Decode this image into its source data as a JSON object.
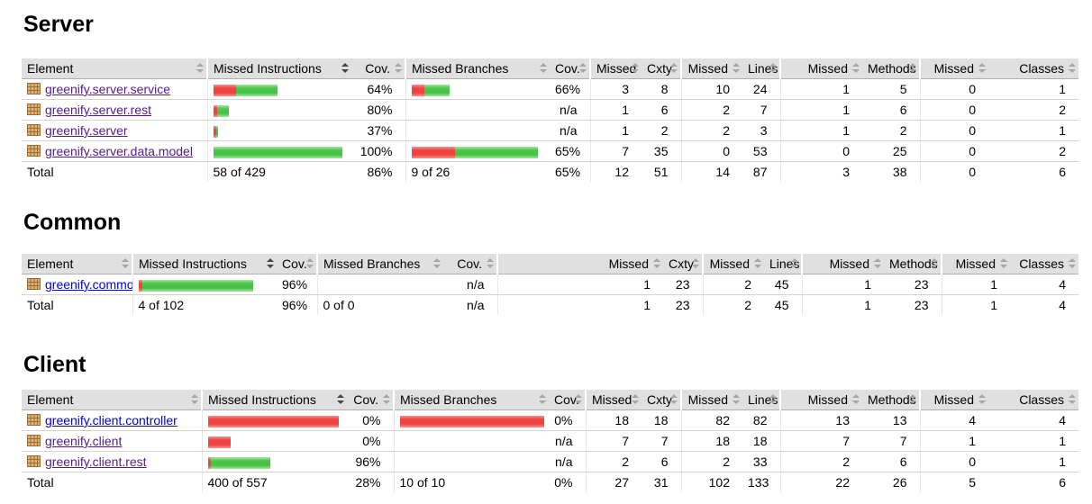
{
  "colors": {
    "bar_red": "#ee4341",
    "bar_green": "#4ec44b",
    "link_visited": "#551a8b",
    "link_unvisited": "#0000e8",
    "header_bg": "#e0e0e0"
  },
  "columns": {
    "element": "Element",
    "missed_instructions": "Missed Instructions",
    "cov": "Cov.",
    "missed_branches": "Missed Branches",
    "missed": "Missed",
    "cxty": "Cxty",
    "lines": "Lines",
    "methods": "Methods",
    "classes": "Classes"
  },
  "sections": [
    {
      "title": "Server",
      "sorted_column": "Missed Instructions",
      "sort_direction": "desc",
      "rows": [
        {
          "name": "greenify.server.service",
          "link_state": "visited",
          "instr_bar": {
            "red": 25,
            "green": 46
          },
          "instr_cov": "64%",
          "branch_bar": {
            "red": 14,
            "green": 28
          },
          "branch_cov": "66%",
          "missed_cxty": 3,
          "cxty": 8,
          "missed_lines": 10,
          "lines": 24,
          "missed_methods": 1,
          "methods": 5,
          "missed_classes": 0,
          "classes": 1
        },
        {
          "name": "greenify.server.rest",
          "link_state": "visited",
          "instr_bar": {
            "red": 4,
            "green": 13
          },
          "instr_cov": "80%",
          "branch_bar": {
            "red": 0,
            "green": 0
          },
          "branch_cov": "n/a",
          "missed_cxty": 1,
          "cxty": 6,
          "missed_lines": 2,
          "lines": 7,
          "missed_methods": 1,
          "methods": 6,
          "missed_classes": 0,
          "classes": 2
        },
        {
          "name": "greenify.server",
          "link_state": "visited",
          "instr_bar": {
            "red": 3,
            "green": 2
          },
          "instr_cov": "37%",
          "branch_bar": {
            "red": 0,
            "green": 0
          },
          "branch_cov": "n/a",
          "missed_cxty": 1,
          "cxty": 2,
          "missed_lines": 2,
          "lines": 3,
          "missed_methods": 1,
          "methods": 2,
          "missed_classes": 0,
          "classes": 1
        },
        {
          "name": "greenify.server.data.model",
          "link_state": "visited",
          "instr_bar": {
            "red": 0,
            "green": 143
          },
          "instr_cov": "100%",
          "branch_bar": {
            "red": 48,
            "green": 92
          },
          "branch_cov": "65%",
          "missed_cxty": 7,
          "cxty": 35,
          "missed_lines": 0,
          "lines": 53,
          "missed_methods": 0,
          "methods": 25,
          "missed_classes": 0,
          "classes": 2
        }
      ],
      "total": {
        "label": "Total",
        "instr": "58 of 429",
        "instr_cov": "86%",
        "branch": "9 of 26",
        "branch_cov": "65%",
        "missed_cxty": 12,
        "cxty": 51,
        "missed_lines": 14,
        "lines": 87,
        "missed_methods": 3,
        "methods": 38,
        "missed_classes": 0,
        "classes": 6
      }
    },
    {
      "title": "Common",
      "sorted_column": "Missed Instructions",
      "sort_direction": "desc",
      "rows": [
        {
          "name": "greenify.common",
          "link_state": "new",
          "instr_bar": {
            "red": 4,
            "green": 123
          },
          "instr_cov": "96%",
          "branch_bar": {
            "red": 0,
            "green": 0
          },
          "branch_cov": "n/a",
          "missed_cxty": 1,
          "cxty": 23,
          "missed_lines": 2,
          "lines": 45,
          "missed_methods": 1,
          "methods": 23,
          "missed_classes": 1,
          "classes": 4
        }
      ],
      "total": {
        "label": "Total",
        "instr": "4 of 102",
        "instr_cov": "96%",
        "branch": "0 of 0",
        "branch_cov": "n/a",
        "missed_cxty": 1,
        "cxty": 23,
        "missed_lines": 2,
        "lines": 45,
        "missed_methods": 1,
        "methods": 23,
        "missed_classes": 1,
        "classes": 4
      }
    },
    {
      "title": "Client",
      "sorted_column": "Missed Instructions",
      "sort_direction": "desc",
      "rows": [
        {
          "name": "greenify.client.controller",
          "link_state": "new",
          "instr_bar": {
            "red": 145,
            "green": 0
          },
          "instr_cov": "0%",
          "branch_bar": {
            "red": 160,
            "green": 0
          },
          "branch_cov": "0%",
          "missed_cxty": 18,
          "cxty": 18,
          "missed_lines": 82,
          "lines": 82,
          "missed_methods": 13,
          "methods": 13,
          "missed_classes": 4,
          "classes": 4
        },
        {
          "name": "greenify.client",
          "link_state": "visited",
          "instr_bar": {
            "red": 25,
            "green": 0
          },
          "instr_cov": "0%",
          "branch_bar": {
            "red": 0,
            "green": 0
          },
          "branch_cov": "n/a",
          "missed_cxty": 7,
          "cxty": 7,
          "missed_lines": 18,
          "lines": 18,
          "missed_methods": 7,
          "methods": 7,
          "missed_classes": 1,
          "classes": 1
        },
        {
          "name": "greenify.client.rest",
          "link_state": "visited",
          "instr_bar": {
            "red": 3,
            "green": 66
          },
          "instr_cov": "96%",
          "branch_bar": {
            "red": 0,
            "green": 0
          },
          "branch_cov": "n/a",
          "missed_cxty": 2,
          "cxty": 6,
          "missed_lines": 2,
          "lines": 33,
          "missed_methods": 2,
          "methods": 6,
          "missed_classes": 0,
          "classes": 1
        }
      ],
      "total": {
        "label": "Total",
        "instr": "400 of 557",
        "instr_cov": "28%",
        "branch": "10 of 10",
        "branch_cov": "0%",
        "missed_cxty": 27,
        "cxty": 31,
        "missed_lines": 102,
        "lines": 133,
        "missed_methods": 22,
        "methods": 26,
        "missed_classes": 5,
        "classes": 6
      }
    }
  ]
}
